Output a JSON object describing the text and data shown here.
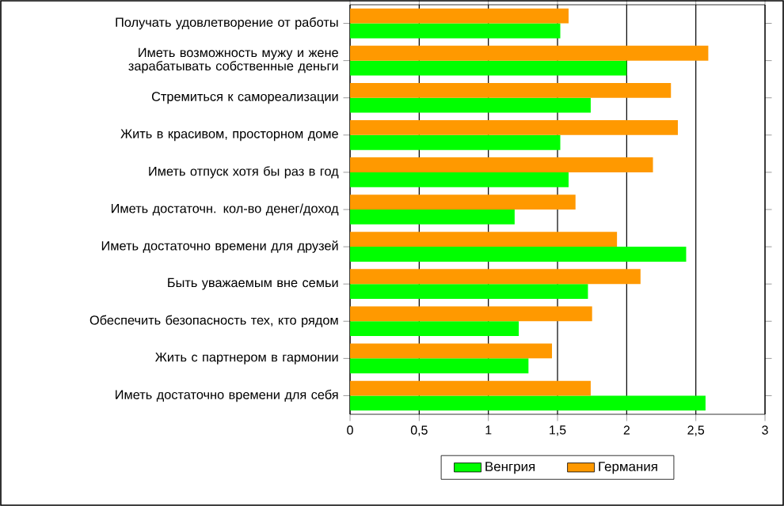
{
  "chart_data": {
    "type": "bar",
    "orientation": "horizontal",
    "categories": [
      "Получать удовлетворение от работы",
      "Иметь возможность мужу и жене зарабатывать собственные деньги",
      "Стремиться к самореализации",
      "Жить в красивом, просторном доме",
      "Иметь отпуск хотя бы раз в год",
      "Иметь достаточн. кол-во денег/доход",
      "Иметь достаточно времени для друзей",
      "Быть уважаемым вне семьи",
      "Обеспечить безопасность тех, кто рядом",
      "Жить с партнером в гармонии",
      "Иметь достаточно времени для себя"
    ],
    "series": [
      {
        "name": "Венгрия",
        "color": "#00ff00",
        "values": [
          1.52,
          2.0,
          1.74,
          1.52,
          1.58,
          1.19,
          2.43,
          1.72,
          1.22,
          1.29,
          2.57
        ]
      },
      {
        "name": "Германия",
        "color": "#ff9900",
        "values": [
          1.58,
          2.59,
          2.32,
          2.37,
          2.19,
          1.63,
          1.93,
          2.1,
          1.75,
          1.46,
          1.74
        ]
      }
    ],
    "xlim": [
      0,
      3
    ],
    "xticks": [
      0,
      {
        "value": 0.5,
        "label": "0,5"
      },
      1,
      {
        "value": 1.5,
        "label": "1,5"
      },
      2,
      {
        "value": 2.5,
        "label": "2,5"
      },
      3
    ],
    "grid": "x",
    "legend": "bottom"
  }
}
